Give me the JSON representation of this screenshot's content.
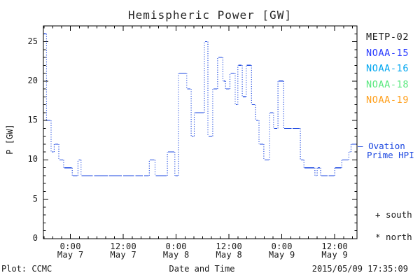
{
  "header": {
    "title": "Hemispheric Power [GW]"
  },
  "chart_data": {
    "type": "line",
    "title": "Hemispheric Power [GW]",
    "xlabel": "Date and Time",
    "ylabel": "P [GW]",
    "ylim": [
      0,
      27
    ],
    "xlim_hours": [
      -6.15,
      65.05
    ],
    "x_epoch": "hours since 2015-05-07 00:00",
    "grid": false,
    "legend_position": "right margin",
    "y_major_ticks": [
      0,
      5,
      10,
      15,
      20,
      25
    ],
    "y_minor_step": 1,
    "x_minor_step_hours": 2,
    "x_major_ticks": [
      {
        "hours": 0,
        "time": "0:00",
        "date": "May 7"
      },
      {
        "hours": 12,
        "time": "12:00",
        "date": "May 7"
      },
      {
        "hours": 24,
        "time": "0:00",
        "date": "May 8"
      },
      {
        "hours": 36,
        "time": "12:00",
        "date": "May 8"
      },
      {
        "hours": 48,
        "time": "0:00",
        "date": "May 9"
      },
      {
        "hours": 60,
        "time": "12:00",
        "date": "May 9"
      }
    ],
    "series": [
      {
        "name": "Ovation Prime HPI",
        "color": "#1a46e0",
        "style": "stepped: solid horizontal dashes per satellite pass, dotted vertical connectors",
        "t_end": 65.05,
        "steps": [
          [
            -6.15,
            26
          ],
          [
            -5.45,
            15
          ],
          [
            -4.4,
            11
          ],
          [
            -3.7,
            12
          ],
          [
            -2.65,
            10
          ],
          [
            -1.55,
            9
          ],
          [
            0.4,
            8
          ],
          [
            1.7,
            10
          ],
          [
            2.4,
            8
          ],
          [
            5.2,
            8
          ],
          [
            8.6,
            8
          ],
          [
            11.8,
            8
          ],
          [
            14.6,
            8
          ],
          [
            16.6,
            8
          ],
          [
            17.9,
            10
          ],
          [
            19.2,
            8
          ],
          [
            22.0,
            11
          ],
          [
            23.7,
            8
          ],
          [
            24.5,
            21
          ],
          [
            26.4,
            19
          ],
          [
            27.4,
            13
          ],
          [
            28.1,
            16
          ],
          [
            30.4,
            25
          ],
          [
            31.2,
            13
          ],
          [
            32.3,
            19
          ],
          [
            33.4,
            23
          ],
          [
            34.6,
            20
          ],
          [
            35.2,
            19
          ],
          [
            36.2,
            21
          ],
          [
            37.4,
            17
          ],
          [
            38.0,
            22
          ],
          [
            39.0,
            18
          ],
          [
            39.9,
            22
          ],
          [
            41.1,
            17
          ],
          [
            42.0,
            15
          ],
          [
            42.8,
            12
          ],
          [
            43.9,
            10
          ],
          [
            45.2,
            16
          ],
          [
            46.1,
            14
          ],
          [
            47.1,
            20
          ],
          [
            48.4,
            14
          ],
          [
            50.3,
            14
          ],
          [
            52.2,
            10
          ],
          [
            53.0,
            9
          ],
          [
            55.5,
            8
          ],
          [
            56.0,
            9
          ],
          [
            56.8,
            8
          ],
          [
            58.5,
            8
          ],
          [
            60.0,
            9
          ],
          [
            61.6,
            10
          ],
          [
            63.2,
            11
          ],
          [
            63.7,
            12
          ]
        ]
      }
    ]
  },
  "legend": {
    "satellites": [
      {
        "label": "METP-02",
        "color": "#1a1a1a"
      },
      {
        "label": "NOAA-15",
        "color": "#2a3cff"
      },
      {
        "label": "NOAA-16",
        "color": "#00a6f0"
      },
      {
        "label": "NOAA-18",
        "color": "#58e87d"
      },
      {
        "label": "NOAA-19",
        "color": "#ffa01e"
      }
    ]
  },
  "ovation_label": {
    "marker": "–",
    "line1": "Ovation",
    "line2": "Prime HPI",
    "color": "#1a46e0"
  },
  "hemisphere_markers": {
    "south": "+ south",
    "north": "* north"
  },
  "footer": {
    "plot_credit": "Plot: CCMC",
    "axis_title": "Date and Time",
    "timestamp": "2015/05/09 17:35:09"
  }
}
